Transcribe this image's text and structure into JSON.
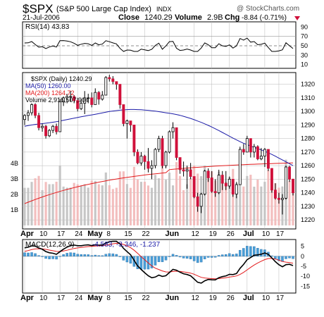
{
  "header": {
    "symbol": "$SPX",
    "name": "(S&P 500 Large Cap Index)",
    "exchange": "INDX",
    "watermark": "@ StockCharts.com",
    "date": "21-Jul-2006",
    "close_label": "Close",
    "close_value": "1240.29",
    "volume_label": "Volume",
    "volume_value": "2.9B",
    "chg_label": "Chg",
    "chg_value": "-8.84 (-0.71%)"
  },
  "rsi_panel": {
    "label": "RSI(14) 43.83",
    "y_ticks": [
      "90",
      "70",
      "50",
      "30",
      "10"
    ]
  },
  "price_panel": {
    "legend": [
      {
        "text": "$SPX (Daily) 1240.29",
        "color": "#000000"
      },
      {
        "text": "MA(50) 1260.00",
        "color": "#1c1ca8"
      },
      {
        "text": "MA(200) 1264.72",
        "color": "#e31a1c"
      },
      {
        "text": "Volume 2,916,507,904",
        "color": "#000000"
      }
    ],
    "y_ticks": [
      "1320",
      "1310",
      "1300",
      "1290",
      "1280",
      "1270",
      "1260",
      "1250",
      "1240",
      "1230",
      "1220"
    ],
    "volume_ticks": [
      "4B",
      "3B",
      "2B",
      "1B"
    ]
  },
  "macd_panel": {
    "label": "MACD(12,26,9)",
    "values": "-4.583, -3.346, -1.237",
    "y_ticks": [
      "5",
      "0",
      "-5",
      "-10",
      "-15"
    ]
  },
  "x_labels": [
    "Apr",
    "10",
    "17",
    "24",
    "May",
    "8",
    "15",
    "22",
    "Jun",
    "12",
    "19",
    "26",
    "Jul",
    "10",
    "17"
  ],
  "colors": {
    "up": "#ffffff",
    "down": "#d0103a",
    "ma50": "#1c1ca8",
    "ma200": "#e31a1c",
    "vol_up": "#c0c0c0",
    "vol_down": "#f2b7b7",
    "hist": "#4a9fd8",
    "grid": "#b8b8b8"
  },
  "chart_data": {
    "type": "line",
    "title": "$SPX (S&P 500 Large Cap Index) INDX",
    "dates": [
      "04-03",
      "04-04",
      "04-05",
      "04-06",
      "04-07",
      "04-10",
      "04-11",
      "04-12",
      "04-13",
      "04-17",
      "04-18",
      "04-19",
      "04-20",
      "04-21",
      "04-24",
      "04-25",
      "04-26",
      "04-27",
      "04-28",
      "05-01",
      "05-02",
      "05-03",
      "05-04",
      "05-05",
      "05-08",
      "05-09",
      "05-10",
      "05-11",
      "05-12",
      "05-15",
      "05-16",
      "05-17",
      "05-18",
      "05-19",
      "05-22",
      "05-23",
      "05-24",
      "05-25",
      "05-26",
      "05-30",
      "05-31",
      "06-01",
      "06-02",
      "06-05",
      "06-06",
      "06-07",
      "06-08",
      "06-09",
      "06-12",
      "06-13",
      "06-14",
      "06-15",
      "06-16",
      "06-19",
      "06-20",
      "06-21",
      "06-22",
      "06-23",
      "06-26",
      "06-27",
      "06-28",
      "06-29",
      "06-30",
      "07-03",
      "07-05",
      "07-06",
      "07-07",
      "07-10",
      "07-11",
      "07-12",
      "07-13",
      "07-14",
      "07-17",
      "07-18",
      "07-19",
      "07-20",
      "07-21"
    ],
    "ohlc": [
      [
        1294,
        1298,
        1290,
        1297
      ],
      [
        1297,
        1301,
        1293,
        1299
      ],
      [
        1299,
        1306,
        1297,
        1305
      ],
      [
        1305,
        1306,
        1295,
        1297
      ],
      [
        1297,
        1299,
        1286,
        1288
      ],
      [
        1288,
        1291,
        1285,
        1289
      ],
      [
        1289,
        1290,
        1280,
        1282
      ],
      [
        1282,
        1287,
        1281,
        1286
      ],
      [
        1286,
        1290,
        1284,
        1289
      ],
      [
        1289,
        1291,
        1283,
        1285
      ],
      [
        1285,
        1309,
        1285,
        1307
      ],
      [
        1307,
        1311,
        1304,
        1310
      ],
      [
        1310,
        1313,
        1306,
        1311
      ],
      [
        1311,
        1315,
        1307,
        1311
      ],
      [
        1311,
        1312,
        1306,
        1308
      ],
      [
        1308,
        1310,
        1300,
        1302
      ],
      [
        1302,
        1309,
        1301,
        1306
      ],
      [
        1306,
        1315,
        1298,
        1310
      ],
      [
        1310,
        1313,
        1306,
        1310
      ],
      [
        1310,
        1314,
        1303,
        1305
      ],
      [
        1305,
        1317,
        1305,
        1314
      ],
      [
        1314,
        1315,
        1305,
        1309
      ],
      [
        1309,
        1315,
        1308,
        1312
      ],
      [
        1312,
        1326,
        1312,
        1325
      ],
      [
        1325,
        1327,
        1322,
        1324
      ],
      [
        1324,
        1326,
        1320,
        1322
      ],
      [
        1322,
        1322,
        1316,
        1320
      ],
      [
        1320,
        1320,
        1302,
        1305
      ],
      [
        1305,
        1305,
        1289,
        1291
      ],
      [
        1291,
        1294,
        1280,
        1293
      ],
      [
        1293,
        1293,
        1285,
        1290
      ],
      [
        1290,
        1290,
        1267,
        1270
      ],
      [
        1270,
        1272,
        1261,
        1262
      ],
      [
        1262,
        1270,
        1260,
        1267
      ],
      [
        1267,
        1268,
        1257,
        1263
      ],
      [
        1263,
        1273,
        1255,
        1258
      ],
      [
        1258,
        1264,
        1250,
        1260
      ],
      [
        1260,
        1273,
        1258,
        1272
      ],
      [
        1272,
        1282,
        1270,
        1280
      ],
      [
        1280,
        1282,
        1258,
        1260
      ],
      [
        1260,
        1271,
        1258,
        1270
      ],
      [
        1270,
        1286,
        1269,
        1285
      ],
      [
        1285,
        1292,
        1280,
        1288
      ],
      [
        1288,
        1288,
        1264,
        1266
      ],
      [
        1266,
        1266,
        1254,
        1257
      ],
      [
        1257,
        1263,
        1252,
        1256
      ],
      [
        1256,
        1260,
        1243,
        1257
      ],
      [
        1257,
        1262,
        1250,
        1252
      ],
      [
        1252,
        1252,
        1236,
        1237
      ],
      [
        1237,
        1240,
        1226,
        1230
      ],
      [
        1230,
        1240,
        1225,
        1239
      ],
      [
        1239,
        1257,
        1238,
        1256
      ],
      [
        1256,
        1258,
        1248,
        1251
      ],
      [
        1251,
        1256,
        1240,
        1241
      ],
      [
        1241,
        1250,
        1237,
        1240
      ],
      [
        1240,
        1257,
        1239,
        1253
      ],
      [
        1253,
        1256,
        1242,
        1247
      ],
      [
        1247,
        1256,
        1242,
        1245
      ],
      [
        1245,
        1252,
        1243,
        1250
      ],
      [
        1250,
        1250,
        1237,
        1239
      ],
      [
        1239,
        1248,
        1236,
        1246
      ],
      [
        1246,
        1274,
        1246,
        1272
      ],
      [
        1272,
        1276,
        1268,
        1270
      ],
      [
        1270,
        1282,
        1270,
        1280
      ],
      [
        1280,
        1280,
        1266,
        1270
      ],
      [
        1270,
        1276,
        1266,
        1274
      ],
      [
        1274,
        1275,
        1264,
        1265
      ],
      [
        1265,
        1273,
        1264,
        1267
      ],
      [
        1267,
        1273,
        1259,
        1272
      ],
      [
        1272,
        1272,
        1256,
        1258
      ],
      [
        1258,
        1258,
        1240,
        1242
      ],
      [
        1242,
        1247,
        1235,
        1236
      ],
      [
        1236,
        1240,
        1232,
        1235
      ],
      [
        1235,
        1239,
        1224,
        1236
      ],
      [
        1236,
        1260,
        1235,
        1259
      ],
      [
        1259,
        1260,
        1248,
        1250
      ],
      [
        1250,
        1250,
        1238,
        1240
      ]
    ],
    "ma50": [
      1289,
      1289.5,
      1290,
      1290.4,
      1290.7,
      1291,
      1291.3,
      1291.6,
      1292,
      1292.4,
      1292.9,
      1293.4,
      1294,
      1294.5,
      1295,
      1295.5,
      1296,
      1296.5,
      1297,
      1297.4,
      1297.9,
      1298.4,
      1298.9,
      1299.4,
      1299.9,
      1300.3,
      1300.6,
      1300.9,
      1301.1,
      1301.3,
      1301.4,
      1301.4,
      1301.3,
      1301.2,
      1301,
      1300.8,
      1300.5,
      1300.2,
      1299.8,
      1299.4,
      1299,
      1298.6,
      1298.2,
      1297.7,
      1297.1,
      1296.4,
      1295.6,
      1294.8,
      1293.9,
      1292.9,
      1291.9,
      1290.8,
      1289.7,
      1288.5,
      1287.2,
      1285.9,
      1284.5,
      1283.1,
      1281.7,
      1280.3,
      1279,
      1277.7,
      1276.5,
      1275.5,
      1274.5,
      1273.5,
      1272.6,
      1271.6,
      1270.6,
      1269.5,
      1268.3,
      1267,
      1265.6,
      1264.2,
      1262.8,
      1261.4,
      1260
    ]
  }
}
